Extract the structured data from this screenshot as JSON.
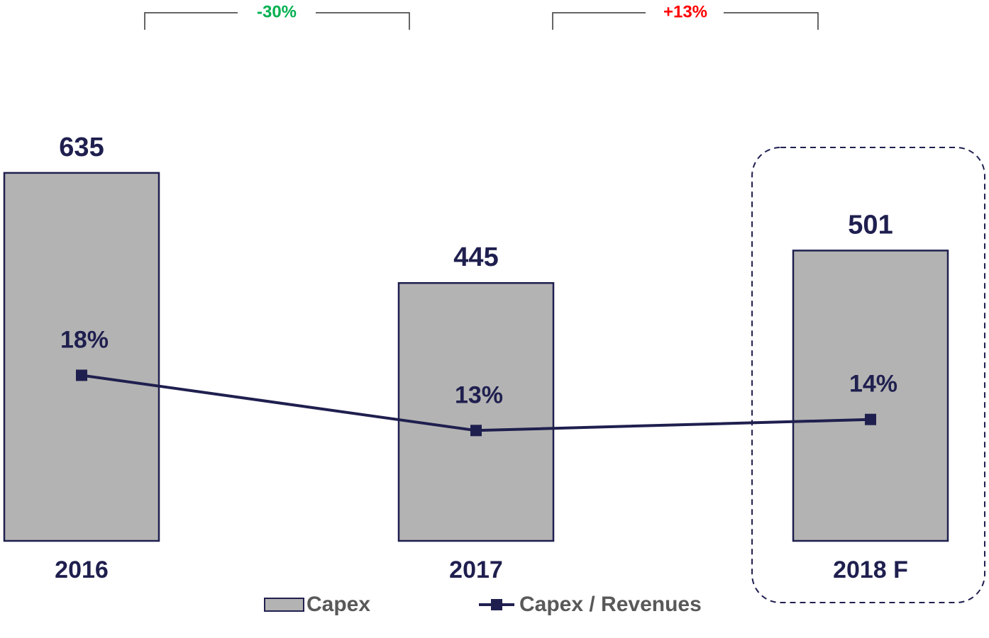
{
  "chart_data": {
    "type": "bar_line",
    "categories": [
      "2016",
      "2017",
      "2018 F"
    ],
    "series": [
      {
        "name": "Capex",
        "color": "#b3b3b3",
        "edgecolor": "#1f1f4f",
        "values": [
          635,
          445,
          501
        ]
      },
      {
        "name": "Capex / Revenues",
        "color": "#1f1f4f",
        "axis": "y2",
        "values": [
          18,
          13,
          14
        ],
        "value_labels": [
          "18%",
          "13%",
          "14%"
        ]
      }
    ],
    "ylim": [
      0,
      800
    ],
    "y2lim": [
      3,
      45
    ],
    "annotations": [
      {
        "text": "-30%",
        "color": "#00b050"
      },
      {
        "text": "+13%",
        "color": "#ff0000"
      }
    ],
    "legend": "bottom"
  }
}
